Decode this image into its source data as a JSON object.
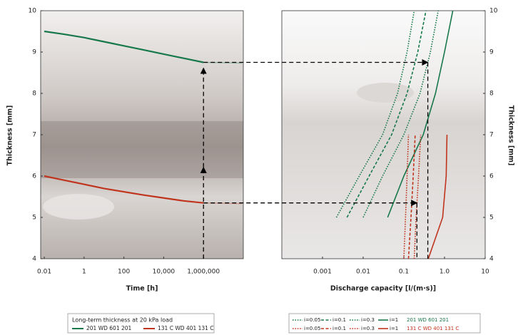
{
  "chart_data": [
    {
      "type": "line",
      "xscale": "log",
      "x_label": "Time [h]",
      "y_label": "Thickness [mm]",
      "x": [
        0.01,
        0.1,
        1,
        10,
        100,
        1000,
        10000,
        100000,
        1000000
      ],
      "series": [
        {
          "name": "201 WD 601 201",
          "color": "#17784a",
          "values": [
            9.5,
            9.43,
            9.35,
            9.25,
            9.15,
            9.05,
            8.95,
            8.85,
            8.75
          ]
        },
        {
          "name": "131 C WD 401 131 C",
          "color": "#c0341d",
          "values": [
            6.0,
            5.9,
            5.8,
            5.7,
            5.62,
            5.54,
            5.47,
            5.4,
            5.35
          ]
        }
      ],
      "xlim": [
        0.0066,
        100000000
      ],
      "xticks": [
        0.01,
        1,
        100,
        {
          "value": 10000,
          "label": "10,000"
        },
        {
          "value": 1000000,
          "label": "1,000,000"
        }
      ],
      "ylim": [
        4,
        10
      ],
      "yticks": [
        4,
        5,
        6,
        7,
        8,
        9,
        10
      ],
      "legend_title": "Long-term thickness at 20 kPa load"
    },
    {
      "type": "line",
      "xscale": "log",
      "x_label": "Discharge capacity [l/(m·s)]",
      "y_label": "Thickness [mm]",
      "series": [
        {
          "name": "i=0.05",
          "color": "#17784a",
          "style": "dotted",
          "x": [
            0.0022,
            0.008,
            0.03,
            0.07,
            0.12,
            0.18
          ],
          "values": [
            5,
            6,
            7,
            8,
            9,
            10
          ]
        },
        {
          "name": "i=0.1",
          "color": "#17784a",
          "style": "dashed",
          "x": [
            0.004,
            0.014,
            0.05,
            0.12,
            0.22,
            0.35
          ],
          "values": [
            5,
            6,
            7,
            8,
            9,
            10
          ]
        },
        {
          "name": "i=0.3",
          "color": "#17784a",
          "style": "dotted",
          "x": [
            0.01,
            0.03,
            0.1,
            0.25,
            0.45,
            0.7
          ],
          "values": [
            5,
            6,
            7,
            8,
            9,
            10
          ]
        },
        {
          "name": "i=1",
          "color": "#17784a",
          "style": "solid",
          "x": [
            0.04,
            0.1,
            0.3,
            0.6,
            1.0,
            1.6
          ],
          "values": [
            5,
            6,
            7,
            8,
            9,
            10
          ]
        },
        {
          "name": "i=0.05",
          "color": "#c0341d",
          "style": "dotted",
          "x": [
            0.1,
            0.11,
            0.12,
            0.13
          ],
          "values": [
            4,
            5,
            6,
            7
          ]
        },
        {
          "name": "i=0.1",
          "color": "#c0341d",
          "style": "dashed",
          "x": [
            0.13,
            0.15,
            0.17,
            0.19
          ],
          "values": [
            4,
            5,
            6,
            7
          ]
        },
        {
          "name": "i=0.3",
          "color": "#c0341d",
          "style": "dotted",
          "x": [
            0.18,
            0.2,
            0.23,
            0.26
          ],
          "values": [
            4,
            5,
            6,
            7
          ]
        },
        {
          "name": "i=1",
          "color": "#c0341d",
          "style": "solid",
          "x": [
            0.4,
            0.9,
            1.1,
            1.15
          ],
          "values": [
            4,
            5,
            6,
            7
          ]
        }
      ],
      "legend_rows": [
        {
          "label": "201 WD 601 201",
          "color": "#17784a"
        },
        {
          "label": "131 C WD 401 131 C",
          "color": "#c0341d"
        }
      ],
      "xlim": [
        0.0001,
        10
      ],
      "xticks": [
        0.001,
        0.01,
        0.1,
        {
          "value": 1,
          "label": "1.0"
        },
        10
      ],
      "ylim": [
        4,
        10
      ],
      "yticks": [
        4,
        5,
        6,
        7,
        8,
        9,
        10
      ]
    }
  ]
}
